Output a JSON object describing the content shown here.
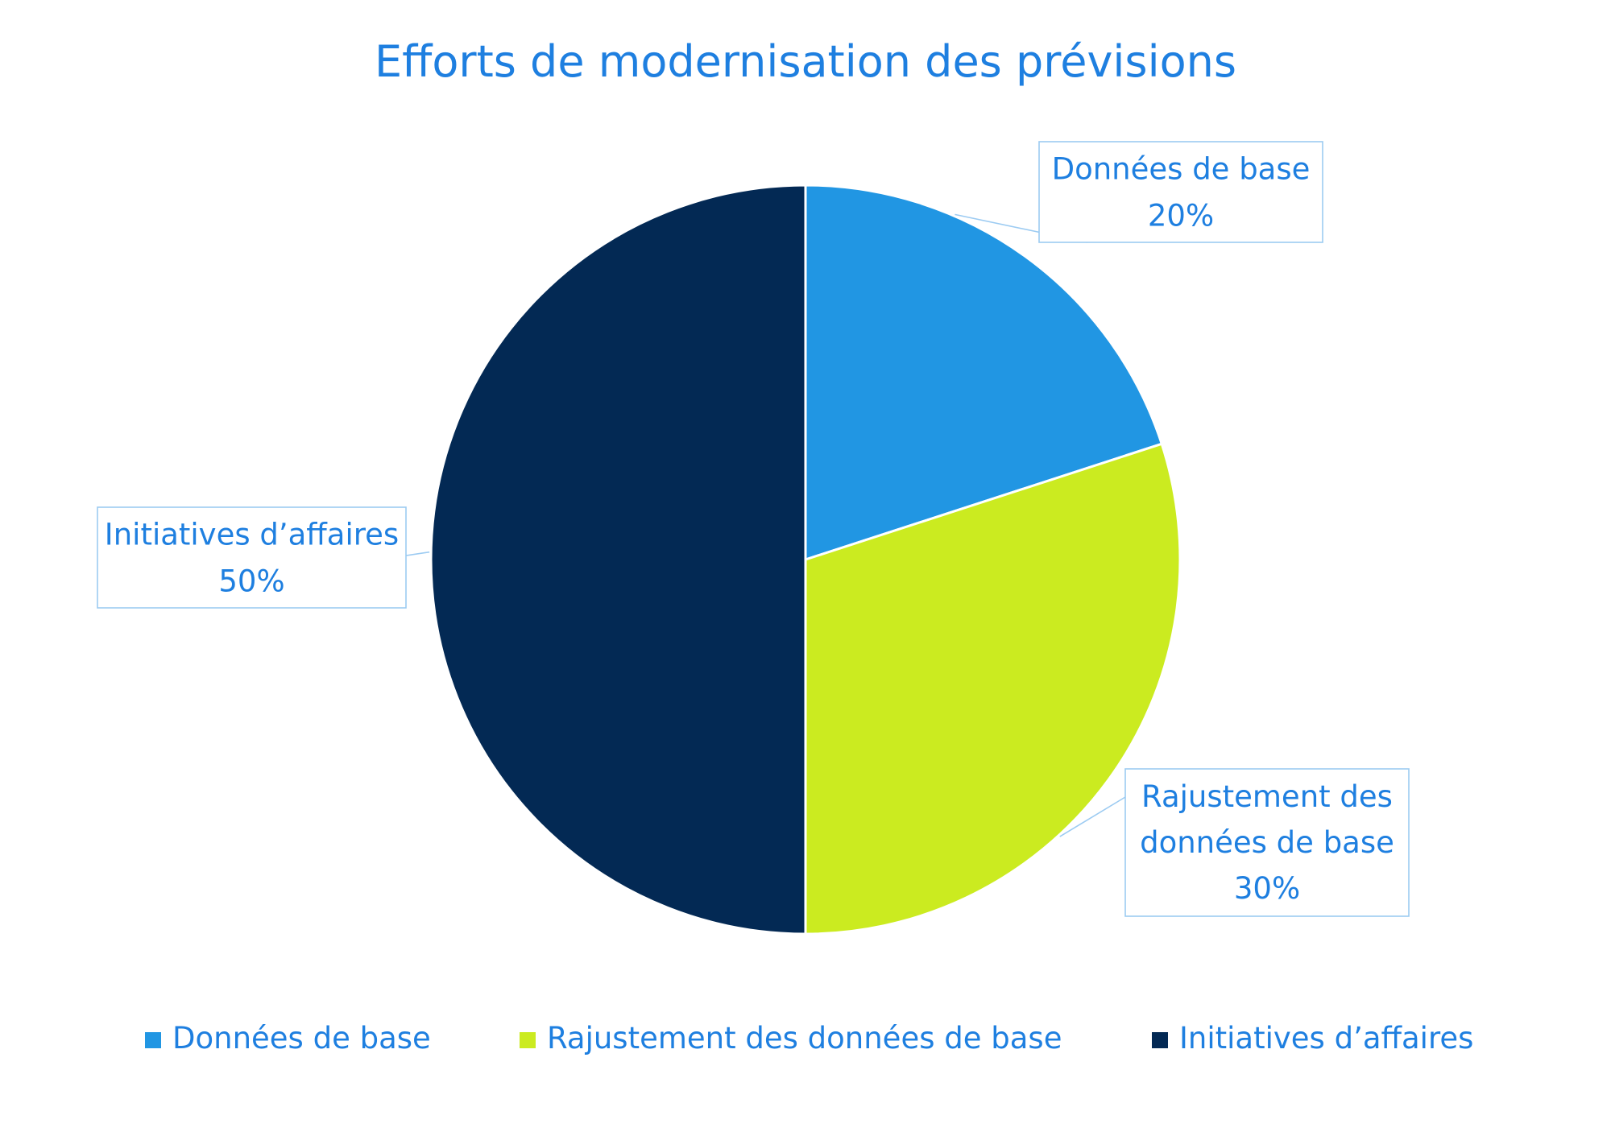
{
  "chart_data": {
    "type": "pie",
    "title": "Efforts de modernisation des prévisions",
    "slices": [
      {
        "label": "Données de base",
        "label_lines": [
          "Données de base"
        ],
        "value": 20,
        "value_label": "20%",
        "color": "#2196E3"
      },
      {
        "label": "Rajustement des données de base",
        "label_lines": [
          "Rajustement des",
          "données de base"
        ],
        "value": 30,
        "value_label": "30%",
        "color": "#CBEB20"
      },
      {
        "label": "Initiatives d’affaires",
        "label_lines": [
          "Initiatives d’affaires"
        ],
        "value": 50,
        "value_label": "50%",
        "color": "#032954"
      }
    ],
    "legend_position": "bottom",
    "start_angle": "12 o'clock",
    "direction": "clockwise"
  },
  "colors": {
    "text": "#1E7FE0",
    "callout_border": "#9CCBF2",
    "slice_border": "#FFFFFF"
  }
}
